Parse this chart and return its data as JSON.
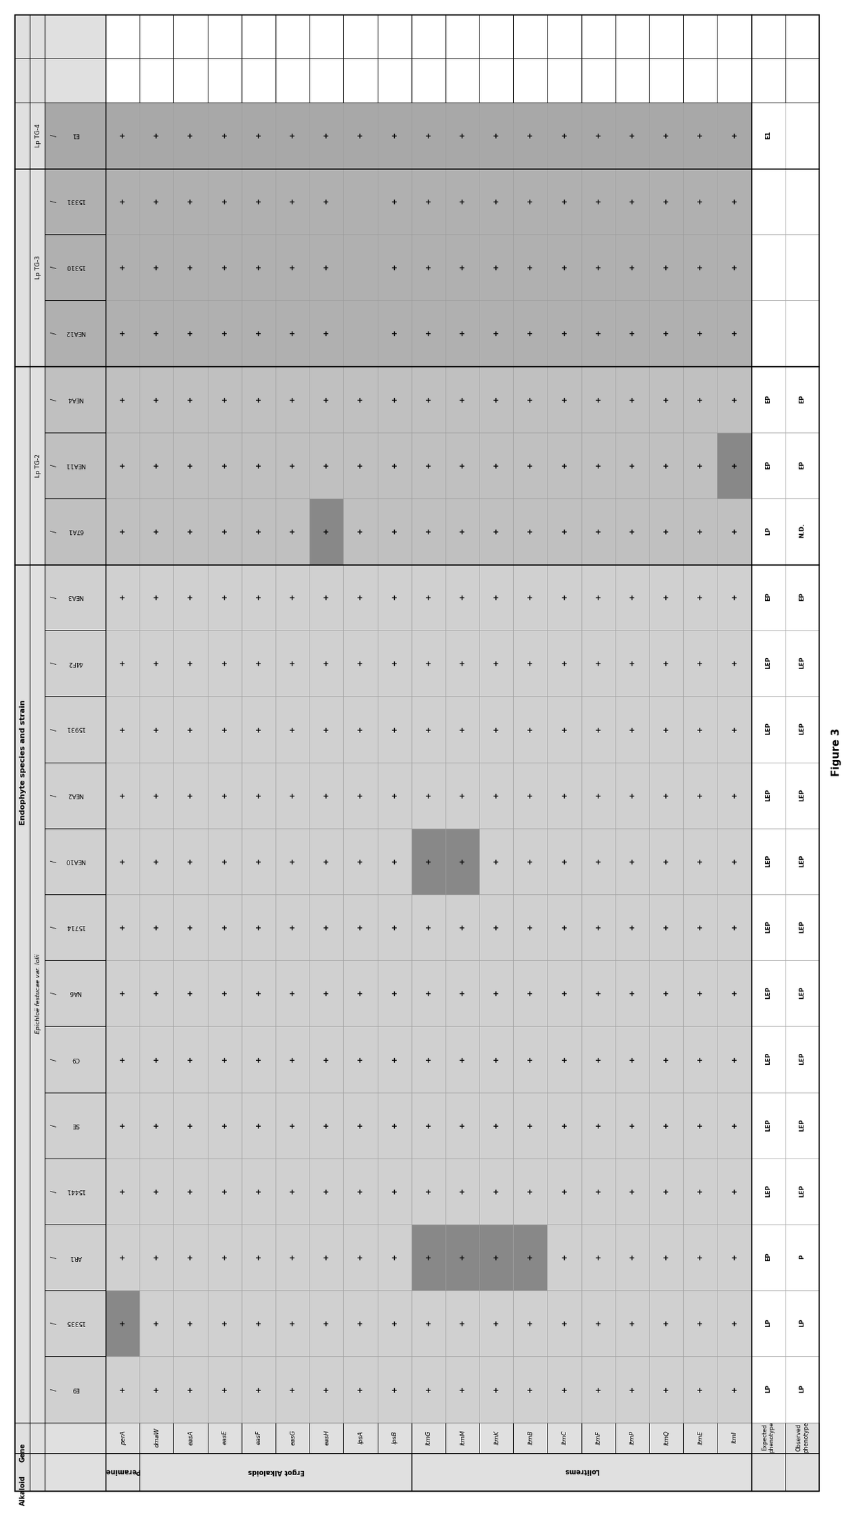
{
  "title": "Figure 3",
  "main_header": "Endophyte species and strain",
  "alkaloid_col": "Alkaloid",
  "gene_col": "Gene",
  "strains_top_to_bottom": [
    "E1",
    "15331",
    "15310",
    "NEA12",
    "NEA4",
    "NEA11",
    "67A1",
    "NEA3",
    "44F2",
    "15931",
    "NEA2",
    "NEA10",
    "15714",
    "NA6",
    "C9",
    "SE",
    "15441",
    "AR1",
    "15335",
    "E9"
  ],
  "strains_left_to_right": [
    "E9",
    "15335",
    "AR1",
    "15441",
    "SE",
    "C9",
    "NA6",
    "15714",
    "NEA10",
    "NEA2",
    "15931",
    "44F2",
    "NEA3",
    "67A1",
    "NEA11",
    "NEA4",
    "NEA12",
    "15310",
    "15331",
    "E1"
  ],
  "strain_groups_lr": [
    {
      "label": "Epichloë festucae var. lolii",
      "start": 0,
      "end": 12,
      "italic": true
    },
    {
      "label": "Lp TG-2",
      "start": 13,
      "end": 15,
      "italic": false
    },
    {
      "label": "Lp TG-3",
      "start": 16,
      "end": 18,
      "italic": false
    },
    {
      "label": "Lp TG-4",
      "start": 19,
      "end": 19,
      "italic": false
    }
  ],
  "genes_top_to_bottom": [
    "perA",
    "dmaW",
    "easA",
    "easE",
    "easF",
    "easG",
    "easH",
    "lpsA",
    "lpsB",
    "ltmG",
    "ltmM",
    "ltmK",
    "ltmB",
    "ltmC",
    "ltmF",
    "ltmP",
    "ltmQ",
    "ltmE",
    "ltmI"
  ],
  "alkaloid_groups": [
    {
      "label": "Peramine",
      "genes": [
        "perA"
      ]
    },
    {
      "label": "Ergot Alkaloids",
      "genes": [
        "dmaW",
        "easA",
        "easE",
        "easF",
        "easG",
        "easH",
        "lpsA",
        "lpsB"
      ]
    },
    {
      "label": "Lolitrems",
      "genes": [
        "ltmG",
        "ltmM",
        "ltmK",
        "ltmB",
        "ltmC",
        "ltmF",
        "ltmP",
        "ltmQ",
        "ltmE",
        "ltmI"
      ]
    }
  ],
  "plus_data": {
    "perA": [
      1,
      1,
      1,
      1,
      1,
      1,
      1,
      1,
      1,
      1,
      1,
      1,
      1,
      1,
      1,
      1,
      1,
      1,
      1,
      1
    ],
    "dmaW": [
      1,
      1,
      1,
      1,
      1,
      1,
      1,
      1,
      1,
      1,
      1,
      1,
      1,
      1,
      1,
      1,
      1,
      1,
      1,
      1
    ],
    "easA": [
      1,
      1,
      1,
      1,
      1,
      1,
      1,
      1,
      1,
      1,
      1,
      1,
      1,
      1,
      1,
      1,
      1,
      1,
      1,
      1
    ],
    "easE": [
      1,
      1,
      1,
      1,
      1,
      1,
      1,
      1,
      1,
      1,
      1,
      1,
      1,
      1,
      1,
      1,
      1,
      1,
      1,
      1
    ],
    "easF": [
      1,
      1,
      1,
      1,
      1,
      1,
      1,
      1,
      1,
      1,
      1,
      1,
      1,
      1,
      1,
      1,
      1,
      1,
      1,
      1
    ],
    "easG": [
      1,
      1,
      1,
      1,
      1,
      1,
      1,
      1,
      1,
      1,
      1,
      1,
      1,
      1,
      1,
      1,
      1,
      1,
      1,
      1
    ],
    "easH": [
      1,
      1,
      1,
      1,
      1,
      1,
      1,
      1,
      1,
      1,
      1,
      1,
      1,
      1,
      1,
      1,
      1,
      1,
      1,
      1
    ],
    "lpsA": [
      1,
      1,
      1,
      1,
      1,
      1,
      1,
      1,
      1,
      1,
      1,
      1,
      1,
      1,
      1,
      1,
      0,
      0,
      0,
      1
    ],
    "lpsB": [
      1,
      1,
      1,
      1,
      1,
      1,
      1,
      1,
      1,
      1,
      1,
      1,
      1,
      1,
      1,
      1,
      1,
      1,
      1,
      1
    ],
    "ltmG": [
      1,
      1,
      1,
      1,
      1,
      1,
      1,
      1,
      1,
      1,
      1,
      1,
      1,
      1,
      1,
      1,
      1,
      1,
      1,
      1
    ],
    "ltmM": [
      1,
      1,
      1,
      1,
      1,
      1,
      1,
      1,
      1,
      1,
      1,
      1,
      1,
      1,
      1,
      1,
      1,
      1,
      1,
      1
    ],
    "ltmK": [
      1,
      1,
      1,
      1,
      1,
      1,
      1,
      1,
      1,
      1,
      1,
      1,
      1,
      1,
      1,
      1,
      1,
      1,
      1,
      1
    ],
    "ltmB": [
      1,
      1,
      1,
      1,
      1,
      1,
      1,
      1,
      1,
      1,
      1,
      1,
      1,
      1,
      1,
      1,
      1,
      1,
      1,
      1
    ],
    "ltmC": [
      1,
      1,
      1,
      1,
      1,
      1,
      1,
      1,
      1,
      1,
      1,
      1,
      1,
      1,
      1,
      1,
      1,
      1,
      1,
      1
    ],
    "ltmF": [
      1,
      1,
      1,
      1,
      1,
      1,
      1,
      1,
      1,
      1,
      1,
      1,
      1,
      1,
      1,
      1,
      1,
      1,
      1,
      1
    ],
    "ltmP": [
      1,
      1,
      1,
      1,
      1,
      1,
      1,
      1,
      1,
      1,
      1,
      1,
      1,
      1,
      1,
      1,
      1,
      1,
      1,
      1
    ],
    "ltmQ": [
      1,
      1,
      1,
      1,
      1,
      1,
      1,
      1,
      1,
      1,
      1,
      1,
      1,
      1,
      1,
      1,
      1,
      1,
      1,
      1
    ],
    "ltmE": [
      1,
      1,
      1,
      1,
      1,
      1,
      1,
      1,
      1,
      1,
      1,
      1,
      1,
      1,
      1,
      1,
      1,
      1,
      1,
      1
    ],
    "ltmI": [
      1,
      1,
      1,
      1,
      1,
      1,
      1,
      1,
      1,
      1,
      1,
      1,
      1,
      1,
      1,
      1,
      1,
      1,
      1,
      1
    ]
  },
  "highlight_cells": {
    "AR1_ltmG": 1,
    "AR1_ltmM": 1,
    "AR1_ltmK": 1,
    "AR1_ltmB": 1,
    "NEA10_ltmG": 1,
    "NEA10_ltmM": 1,
    "15335_perA": 1,
    "67A1_easH": 1,
    "NEA11_ltmI": 1
  },
  "col_shading": {
    "E9": "light",
    "15335": "light",
    "AR1": "light",
    "15441": "light",
    "SE": "light",
    "C9": "light",
    "NA6": "light",
    "15714": "light",
    "NEA10": "light",
    "NEA2": "light",
    "15931": "light",
    "44F2": "light",
    "NEA3": "light",
    "67A1": "medium",
    "NEA11": "medium",
    "NEA4": "medium",
    "NEA12": "dark",
    "15310": "dark",
    "15331": "dark",
    "E1": "darkest"
  },
  "expected_phenotype": [
    "LP",
    "LP",
    "EP",
    "LEP",
    "LEP",
    "LEP",
    "LEP",
    "LEP",
    "LEP",
    "LEP",
    "LEP",
    "LEP",
    "EP",
    "LP",
    "EP",
    "EP",
    "-",
    "-",
    "-",
    "E1"
  ],
  "observed_phenotype": [
    "LP",
    "LP",
    "P",
    "LEP",
    "LEP",
    "LEP",
    "LEP",
    "LEP",
    "LEP",
    "LEP",
    "LEP",
    "LEP",
    "EP",
    "N.D.",
    "EP",
    "EP",
    "-",
    "-",
    "-",
    "-"
  ],
  "shade_light": "#d0d0d0",
  "shade_medium": "#c0c0c0",
  "shade_dark": "#b0b0b0",
  "shade_darkest": "#a8a8a8",
  "shade_header": "#e0e0e0",
  "highlight_bg": "#888888",
  "white": "#ffffff",
  "cell_border": "#999999",
  "main_border": "#333333"
}
